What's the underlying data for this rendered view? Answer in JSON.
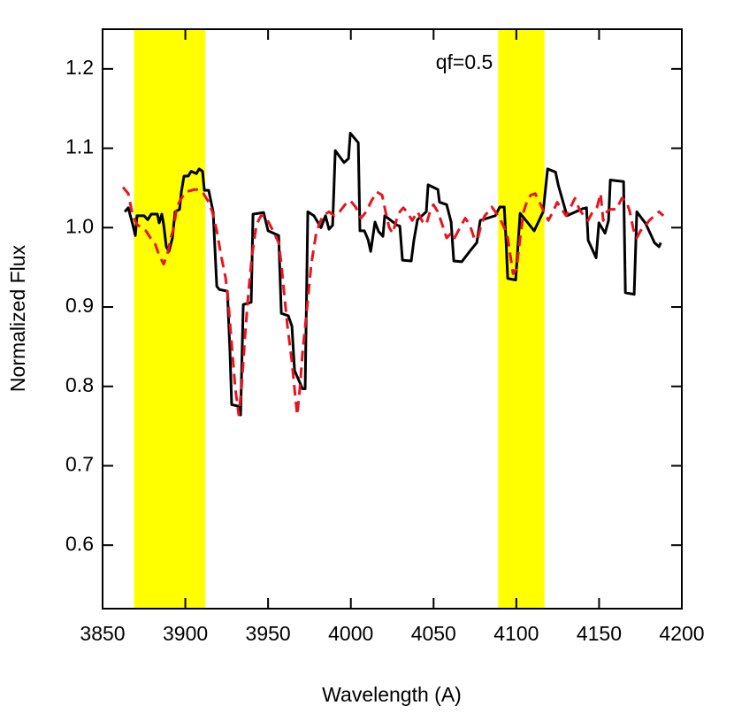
{
  "chart_data": {
    "type": "line",
    "xlabel": "Wavelength (A)",
    "ylabel": "Normalized Flux",
    "annotation": "qf=0.5",
    "xlim": [
      3850,
      4200
    ],
    "ylim": [
      0.52,
      1.25
    ],
    "xticks": [
      3850,
      3900,
      3950,
      4000,
      4050,
      4100,
      4150,
      4200
    ],
    "yticks": [
      0.6,
      0.7,
      0.8,
      0.9,
      {
        "value": 1,
        "label": "1.0"
      },
      1.1,
      1.2
    ],
    "shaded_regions": [
      {
        "range": [
          3869,
          3912
        ],
        "color": "#ffff00"
      },
      {
        "range": [
          4089,
          4117
        ],
        "color": "#ffff00"
      }
    ],
    "series": [
      {
        "color": "#000000",
        "dash": false,
        "x": [
          3863.4,
          3865.5,
          3868.2,
          3869.8,
          3870.8,
          3875.1,
          3877.3,
          3879.4,
          3883.1,
          3884.2,
          3885.8,
          3886.9,
          3888.5,
          3890.1,
          3892.2,
          3893.8,
          3896.5,
          3897.6,
          3899.2,
          3901.8,
          3903.5,
          3906.7,
          3908.3,
          3910.4,
          3911.5,
          3914.1,
          3916.8,
          3919.0,
          3920.6,
          3925.4,
          3927.0,
          3928.0,
          3932.3,
          3933.4,
          3935.0,
          3939.8,
          3940.9,
          3947.3,
          3950.0,
          3956.4,
          3958.0,
          3962.2,
          3964.4,
          3966.0,
          3970.8,
          3972.4,
          3974.0,
          3977.7,
          3982.0,
          3984.7,
          3986.8,
          3989.0,
          3990.6,
          3995.9,
          3998.6,
          3999.7,
          4004.5,
          4005.5,
          4008.2,
          4010.4,
          4012.0,
          4014.6,
          4016.8,
          4019.4,
          4020.5,
          4028.0,
          4029.6,
          4031.2,
          4036.5,
          4038.1,
          4040.3,
          4045.6,
          4046.7,
          4052.6,
          4053.6,
          4057.9,
          4060.6,
          4062.2,
          4067.0,
          4071.8,
          4076.1,
          4078.2,
          4087.3,
          4090.0,
          4092.7,
          4093.7,
          4094.8,
          4099.6,
          4102.3,
          4106.6,
          4110.8,
          4116.2,
          4118.9,
          4123.7,
          4125.3,
          4130.6,
          4140.2,
          4142.4,
          4143.4,
          4148.2,
          4149.9,
          4153.6,
          4155.7,
          4156.8,
          4164.8,
          4165.9,
          4171.2,
          4172.8,
          4178.2,
          4183.5,
          4186.2,
          4187.3
        ],
        "values": [
          1.02,
          1.025,
          1.004,
          0.99,
          1.015,
          1.015,
          1.01,
          1.017,
          1.017,
          1.006,
          1.017,
          1.004,
          0.976,
          0.97,
          0.987,
          1.02,
          1.023,
          1.045,
          1.065,
          1.065,
          1.071,
          1.068,
          1.074,
          1.071,
          1.047,
          1.047,
          1.02,
          0.926,
          0.922,
          0.92,
          0.842,
          0.777,
          0.775,
          0.764,
          0.903,
          0.906,
          1.017,
          1.019,
          0.996,
          0.99,
          0.892,
          0.889,
          0.876,
          0.82,
          0.797,
          0.797,
          1.02,
          1.015,
          1.0,
          1.015,
          0.998,
          1.003,
          1.097,
          1.082,
          1.087,
          1.119,
          1.107,
          0.996,
          0.996,
          0.985,
          0.97,
          1.007,
          0.995,
          0.989,
          1.015,
          1.003,
          1.002,
          0.959,
          0.958,
          0.984,
          1.01,
          1.02,
          1.054,
          1.048,
          1.032,
          1.029,
          1.007,
          0.958,
          0.957,
          0.97,
          0.981,
          1.009,
          1.015,
          1.026,
          1.026,
          0.987,
          0.936,
          0.934,
          1.018,
          1.007,
          0.996,
          1.02,
          1.074,
          1.07,
          1.054,
          1.015,
          1.024,
          1.025,
          0.984,
          0.962,
          1.006,
          0.993,
          1.009,
          1.06,
          1.058,
          0.918,
          0.916,
          1.02,
          1.005,
          0.981,
          0.976,
          0.981
        ]
      },
      {
        "color": "#e8141e",
        "dash": true,
        "x": [
          3862.3,
          3865.5,
          3868.2,
          3870.8,
          3873.5,
          3876.2,
          3878.9,
          3881.5,
          3884.2,
          3886.9,
          3889.6,
          3891.2,
          3892.8,
          3894.9,
          3897.6,
          3900.2,
          3905.6,
          3908.3,
          3910.9,
          3913.6,
          3916.3,
          3919.0,
          3921.6,
          3924.3,
          3925.9,
          3928.0,
          3930.2,
          3932.3,
          3933.9,
          3936.1,
          3938.2,
          3940.3,
          3943.0,
          3945.7,
          3948.3,
          3951.0,
          3953.7,
          3956.4,
          3958.0,
          3959.6,
          3961.7,
          3964.4,
          3966.5,
          3967.6,
          3969.2,
          3970.8,
          3973.5,
          3976.1,
          3979.3,
          3983.1,
          3986.8,
          3990.0,
          3993.2,
          3996.5,
          3999.7,
          4002.9,
          4006.1,
          4009.3,
          4012.5,
          4015.7,
          4018.9,
          4021.0,
          4023.2,
          4025.3,
          4027.5,
          4029.6,
          4031.7,
          4033.9,
          4037.1,
          4040.3,
          4043.5,
          4045.6,
          4047.8,
          4049.9,
          4052.6,
          4055.2,
          4057.9,
          4060.6,
          4062.7,
          4064.9,
          4067.0,
          4069.1,
          4071.8,
          4074.5,
          4076.6,
          4078.8,
          4080.9,
          4083.0,
          4085.2,
          4087.3,
          4090.0,
          4092.7,
          4094.8,
          4096.4,
          4098.0,
          4100.1,
          4102.3,
          4104.4,
          4106.6,
          4108.7,
          4111.4,
          4114.0,
          4116.7,
          4119.4,
          4122.1,
          4124.7,
          4127.4,
          4130.1,
          4132.8,
          4135.4,
          4138.1,
          4140.8,
          4143.4,
          4146.1,
          4148.8,
          4150.9,
          4152.5,
          4154.7,
          4156.8,
          4160.5,
          4163.7,
          4166.4,
          4168.6,
          4170.7,
          4172.8,
          4175.0,
          4177.1,
          4180.3,
          4183.5,
          4186.2,
          4188.9
        ],
        "values": [
          1.051,
          1.043,
          1.015,
          1.004,
          1.0,
          0.996,
          0.987,
          0.981,
          0.965,
          0.954,
          0.97,
          0.987,
          0.998,
          1.026,
          1.037,
          1.045,
          1.048,
          1.048,
          1.043,
          1.034,
          1.02,
          0.996,
          0.965,
          0.937,
          0.909,
          0.853,
          0.797,
          0.764,
          0.797,
          0.864,
          0.92,
          0.965,
          1.004,
          1.015,
          1.015,
          1.004,
          0.993,
          0.981,
          0.954,
          0.92,
          0.876,
          0.831,
          0.786,
          0.764,
          0.797,
          0.842,
          0.898,
          0.954,
          0.996,
          1.015,
          1.02,
          1.015,
          1.02,
          1.029,
          1.034,
          1.026,
          1.012,
          1.02,
          1.034,
          1.045,
          1.041,
          1.02,
          1.0,
          0.993,
          1.009,
          1.02,
          1.025,
          1.02,
          1.009,
          1.02,
          1.007,
          1.004,
          1.02,
          1.029,
          1.02,
          1.004,
          0.987,
          0.993,
          0.987,
          0.996,
          1.004,
          1.012,
          1.004,
          0.987,
          0.985,
          1.004,
          1.015,
          1.02,
          1.026,
          1.02,
          1.012,
          1.0,
          0.987,
          0.965,
          0.942,
          0.948,
          0.987,
          1.02,
          1.034,
          1.041,
          1.043,
          1.032,
          1.02,
          1.009,
          1.02,
          1.032,
          1.023,
          1.015,
          1.026,
          1.037,
          1.023,
          1.015,
          1.009,
          1.02,
          1.026,
          1.043,
          1.009,
          1.02,
          1.023,
          1.023,
          1.037,
          1.034,
          1.02,
          0.998,
          0.987,
          0.996,
          1.0,
          1.009,
          1.015,
          1.02,
          1.015
        ]
      }
    ]
  }
}
